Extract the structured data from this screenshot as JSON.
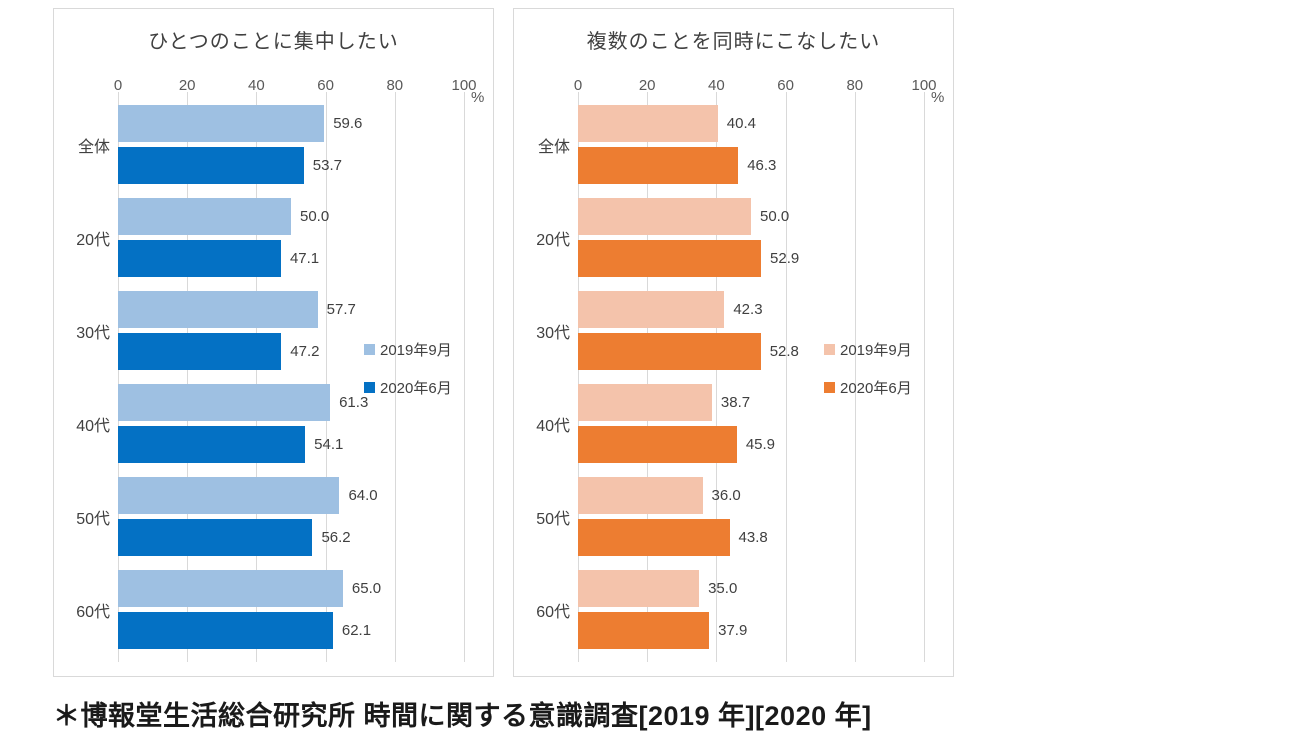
{
  "footer": {
    "source_note": "＊博報堂生活総合研究所 時間に関する意識調査[2019 年][2020 年]"
  },
  "chart_data": [
    {
      "type": "bar",
      "orientation": "horizontal",
      "title": "ひとつのことに集中したい",
      "unit": "%",
      "categories": [
        "全体",
        "20代",
        "30代",
        "40代",
        "50代",
        "60代"
      ],
      "series": [
        {
          "name": "2019年9月",
          "color": "#9EC0E2",
          "values": [
            59.6,
            50.0,
            57.7,
            61.3,
            64.0,
            65.0
          ]
        },
        {
          "name": "2020年6月",
          "color": "#0471C4",
          "values": [
            53.7,
            47.1,
            47.2,
            54.1,
            56.2,
            62.1
          ]
        }
      ],
      "xlim": [
        0,
        100
      ],
      "x_ticks": [
        0,
        20,
        40,
        60,
        80,
        100
      ],
      "grid": true,
      "legend_position": "right-middle"
    },
    {
      "type": "bar",
      "orientation": "horizontal",
      "title": "複数のことを同時にこなしたい",
      "unit": "%",
      "categories": [
        "全体",
        "20代",
        "30代",
        "40代",
        "50代",
        "60代"
      ],
      "series": [
        {
          "name": "2019年9月",
          "color": "#F4C3AB",
          "values": [
            40.4,
            50.0,
            42.3,
            38.7,
            36.0,
            35.0
          ]
        },
        {
          "name": "2020年6月",
          "color": "#ED7D31",
          "values": [
            46.3,
            52.9,
            52.8,
            45.9,
            43.8,
            37.9
          ]
        }
      ],
      "xlim": [
        0,
        100
      ],
      "x_ticks": [
        0,
        20,
        40,
        60,
        80,
        100
      ],
      "grid": true,
      "legend_position": "right-middle"
    }
  ]
}
